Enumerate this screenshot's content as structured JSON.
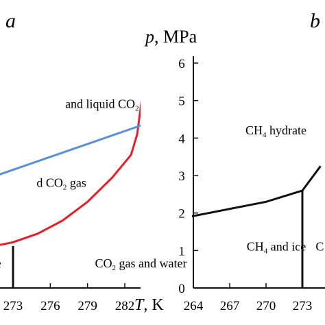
{
  "panels": {
    "a": {
      "letter": "a"
    },
    "b": {
      "letter": "b"
    }
  },
  "chart_data": [
    {
      "id": "a",
      "type": "line",
      "x_axis": {
        "label_symbol": "T",
        "label_unit": ", K",
        "ticks": [
          "273",
          "276",
          "279",
          "282"
        ],
        "tick_values": [
          273,
          276,
          279,
          282
        ],
        "range": [
          271.5,
          284.5
        ]
      },
      "y_range": [
        0,
        6.5
      ],
      "series": [
        {
          "color": "#e0202a",
          "points": [
            [
              271.5,
              1.12
            ],
            [
              273,
              1.22
            ],
            [
              275,
              1.45
            ],
            [
              277,
              1.8
            ],
            [
              279,
              2.3
            ],
            [
              281,
              2.95
            ],
            [
              282.5,
              3.55
            ],
            [
              283.0,
              4.1
            ],
            [
              283.35,
              5.0
            ],
            [
              283.6,
              6.1
            ]
          ]
        },
        {
          "color": "#5b8fd6",
          "points": [
            [
              271.5,
              2.98
            ],
            [
              284.3,
              4.45
            ]
          ]
        },
        {
          "color": "#111111",
          "points": [
            [
              273,
              1.12
            ],
            [
              273,
              0
            ]
          ]
        }
      ],
      "regions": [
        {
          "text": "and liquid CO",
          "sub": "2",
          "x": 277.2,
          "y": 4.8
        },
        {
          "text": "d CO",
          "sub": "2",
          "after": " gas",
          "x": 274.9,
          "y": 2.7
        },
        {
          "text": "e",
          "x": 271.6,
          "y": 0.55
        },
        {
          "text": "CO",
          "sub": "2",
          "after": " gas and water",
          "x": 279.6,
          "y": 0.55
        }
      ]
    },
    {
      "id": "b",
      "type": "line",
      "y_axis": {
        "label_symbol": "p",
        "label_unit": ", MPa",
        "ticks": [
          "0",
          "1",
          "2",
          "3",
          "4",
          "5",
          "6"
        ],
        "tick_values": [
          0,
          1,
          2,
          3,
          4,
          5,
          6
        ],
        "range": [
          0,
          6.8
        ]
      },
      "x_axis": {
        "ticks": [
          "264",
          "267",
          "270",
          "273"
        ],
        "tick_values": [
          264,
          267,
          270,
          273
        ],
        "range": [
          263.2,
          277.5
        ]
      },
      "series": [
        {
          "color": "#111111",
          "points": [
            [
              263.2,
              1.87
            ],
            [
              270,
              2.3
            ],
            [
              273,
              2.6
            ],
            [
              274.5,
              3.25
            ]
          ]
        },
        {
          "color": "#111111",
          "points": [
            [
              273,
              2.6
            ],
            [
              273,
              0
            ]
          ]
        }
      ],
      "regions": [
        {
          "text": "CH",
          "sub": "4",
          "after": " hydrate",
          "x": 268.3,
          "y": 4.1
        },
        {
          "text": "CH",
          "sub": "4",
          "after": " and ice",
          "x": 268.4,
          "y": 1.0
        },
        {
          "text": "C",
          "x": 274.1,
          "y": 1.0
        }
      ]
    }
  ]
}
